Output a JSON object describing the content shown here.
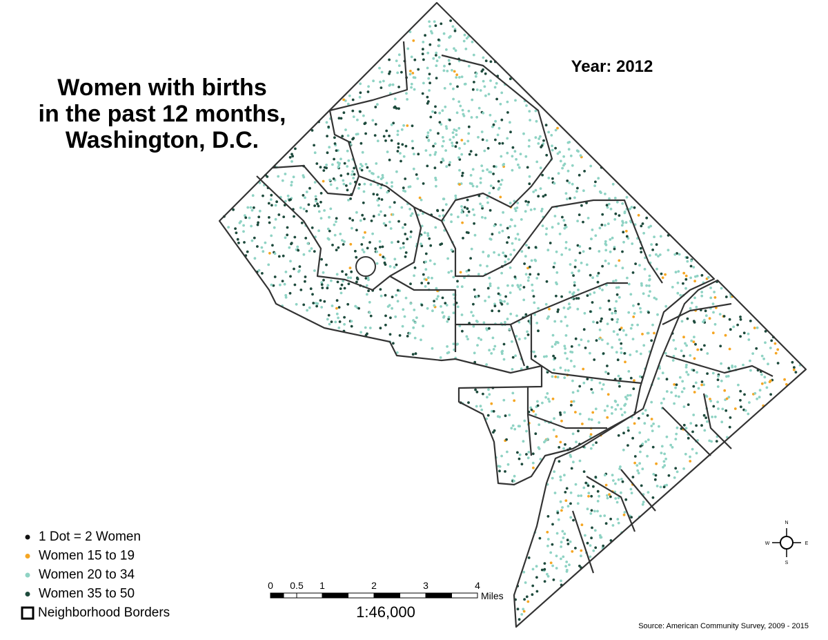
{
  "title": [
    "Women with births",
    "in the past 12 months,",
    "Washington, D.C."
  ],
  "year": "Year: 2012",
  "legend": [
    {
      "label": "1 Dot = 2 Women",
      "color": "#111111"
    },
    {
      "label": "Women 15 to 19",
      "color": "#f5a623"
    },
    {
      "label": "Women 20 to 34",
      "color": "#8fd3c4"
    },
    {
      "label": "Women 35 to 50",
      "color": "#1d4a3c"
    },
    {
      "label": "Neighborhood Borders"
    }
  ],
  "scale_bar": {
    "labels": [
      "0",
      "0.5",
      "1",
      "2",
      "3",
      "4"
    ],
    "unit": "Miles",
    "ratio": "1:46,000"
  },
  "compass": {
    "n": "N",
    "s": "S",
    "e": "E",
    "w": "W"
  },
  "source": "Source: American Community Survey, 2009 - 2015"
}
